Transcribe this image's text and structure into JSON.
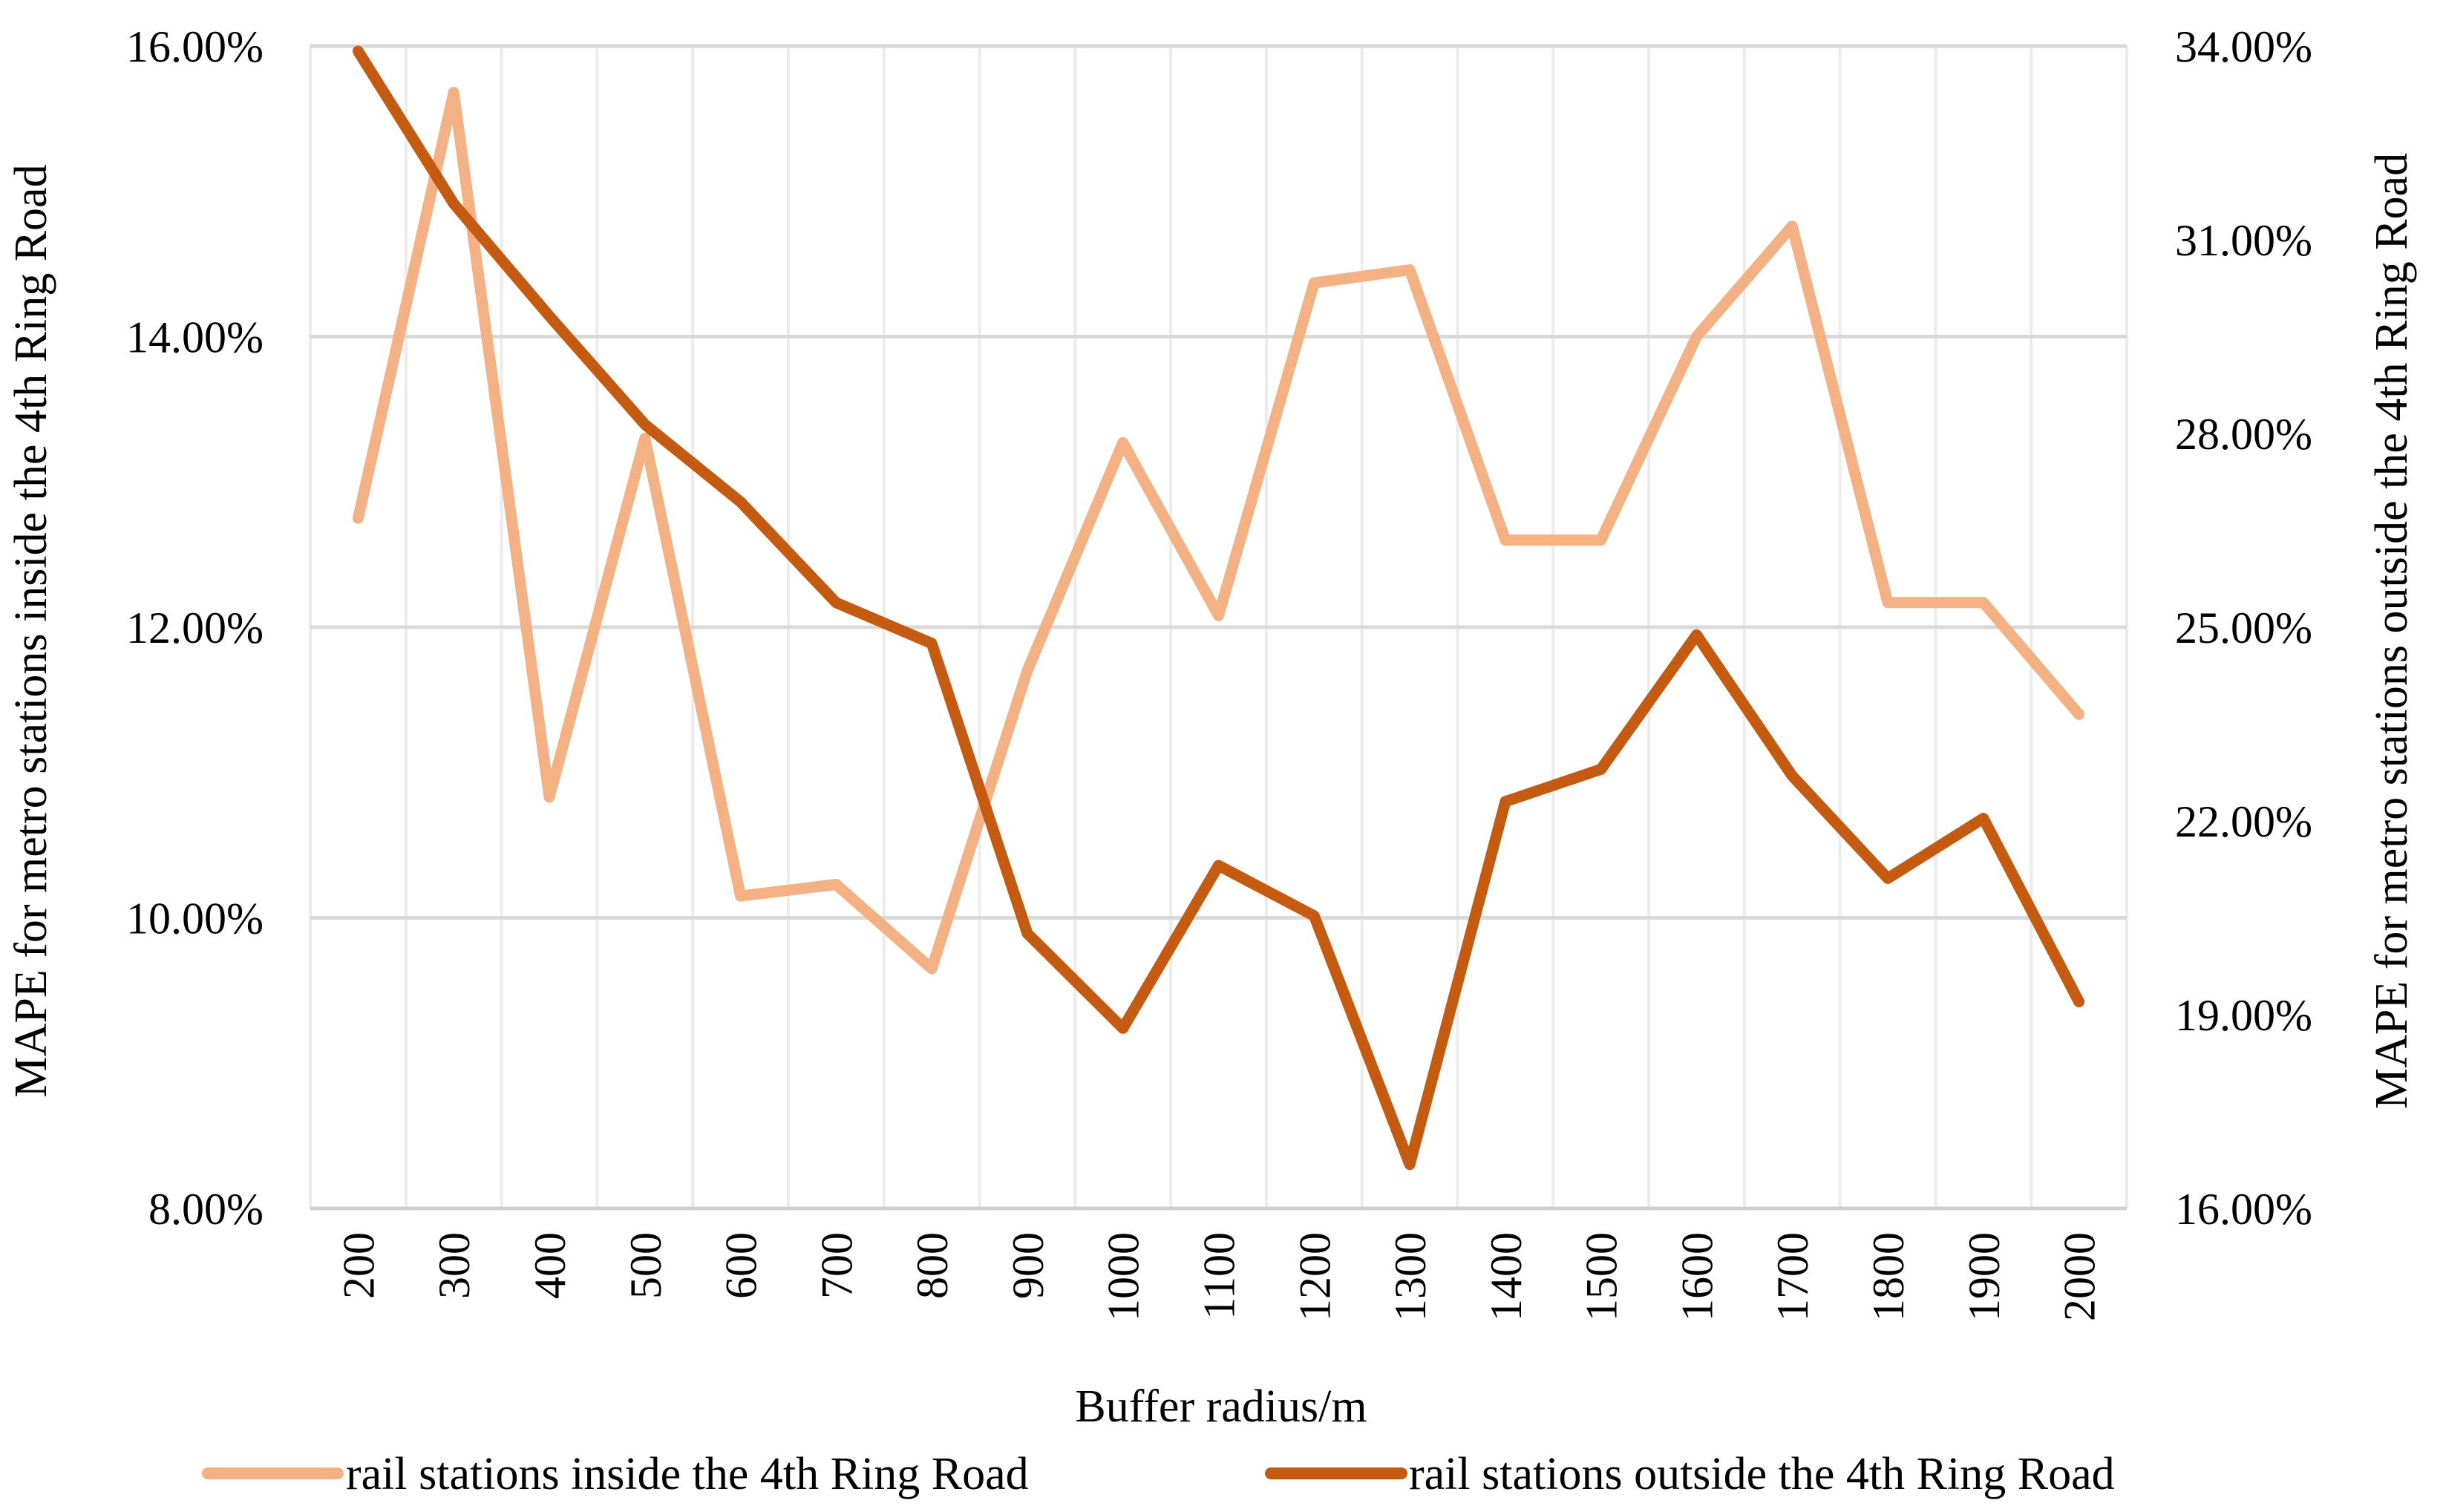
{
  "chart_data": {
    "type": "line",
    "title": "",
    "xlabel": "Buffer radius/m",
    "ylabel_left": "MAPE for metro stations inside the 4th Ring Road",
    "ylabel_right": "MAPE for metro stations outside the 4th Ring Road",
    "categories": [
      "200",
      "300",
      "400",
      "500",
      "600",
      "700",
      "800",
      "900",
      "1000",
      "1100",
      "1200",
      "1300",
      "1400",
      "1500",
      "1600",
      "1700",
      "1800",
      "1900",
      "2000"
    ],
    "y_left": {
      "ylim": [
        0.08,
        0.16
      ],
      "ticks": [
        0.08,
        0.1,
        0.12,
        0.14,
        0.16
      ],
      "tick_labels": [
        "8.00%",
        "10.00%",
        "12.00%",
        "14.00%",
        "16.00%"
      ]
    },
    "y_right": {
      "ylim": [
        0.16,
        0.34
      ],
      "ticks": [
        0.16,
        0.19,
        0.22,
        0.25,
        0.28,
        0.31,
        0.34
      ],
      "tick_labels": [
        "16.00%",
        "19.00%",
        "22.00%",
        "25.00%",
        "28.00%",
        "31.00%",
        "34.00%"
      ]
    },
    "grid": true,
    "legend_position": "bottom",
    "series": [
      {
        "name": "rail stations inside the 4th Ring Road",
        "axis": "left",
        "color": "#f4b183",
        "values": [
          0.1275,
          0.1568,
          0.1083,
          0.133,
          0.1015,
          0.1023,
          0.0965,
          0.117,
          0.1327,
          0.1208,
          0.1437,
          0.1446,
          0.126,
          0.126,
          0.14,
          0.1476,
          0.1217,
          0.1217,
          0.114
        ]
      },
      {
        "name": "rail stations outside the 4th Ring Road",
        "axis": "right",
        "color": "#c55a11",
        "values": [
          0.3392,
          0.3156,
          0.2982,
          0.2814,
          0.2694,
          0.2538,
          0.2475,
          0.2026,
          0.1879,
          0.2131,
          0.2053,
          0.1668,
          0.223,
          0.228,
          0.2488,
          0.227,
          0.2111,
          0.2204,
          0.192
        ]
      }
    ]
  }
}
